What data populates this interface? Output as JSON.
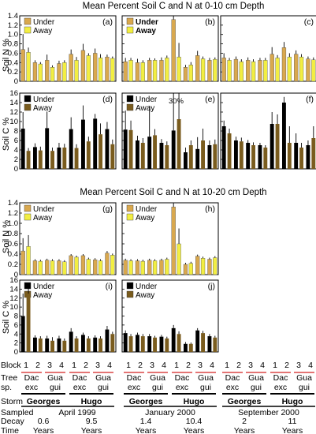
{
  "titles": {
    "top": "Mean Percent Soil C and N at 0-10 cm Depth",
    "bottom": "Mean Percent Soil C and N at 10-20 cm Depth"
  },
  "colors": {
    "under_n": "#D9A84E",
    "away_n": "#F2EE42",
    "under_c": "#000000",
    "away_c": "#7A5C1E",
    "red_line": "#D42020",
    "bar_edge": "#555555"
  },
  "axis_labels": {
    "soil_n": "Soil N %",
    "soil_c": "Soil C %"
  },
  "legend": {
    "under": "Under",
    "away": "Away"
  },
  "footer": {
    "block_label": "Block",
    "tree_label_1": "Tree",
    "tree_label_2": "sp.",
    "storm_label": "Storm",
    "sampled_label": "Sampled",
    "decay_label_1": "Decay",
    "decay_label_2": "Time",
    "blocks": [
      "1",
      "2",
      "3",
      "4"
    ],
    "species": [
      [
        "Dac",
        "exc"
      ],
      [
        "Gua",
        "gui"
      ]
    ],
    "storms": [
      "Georges",
      "Hugo"
    ],
    "sampled": [
      "April 1999",
      "January 2000",
      "September 2000"
    ],
    "decay": [
      [
        "0.6",
        "Years"
      ],
      [
        "9.5",
        "Years"
      ],
      [
        "1.4",
        "Years"
      ],
      [
        "10.4",
        "Years"
      ],
      [
        "2",
        "Years"
      ],
      [
        "11",
        "Years"
      ]
    ]
  },
  "chart_data": [
    {
      "panel": "(a)",
      "type": "bar",
      "depth": "0-10 cm",
      "ylabel": "Soil N %",
      "ylim": [
        0,
        1.4
      ],
      "yticks": [
        0,
        0.2,
        0.4,
        0.6,
        0.8,
        1.0,
        1.2,
        1.4
      ],
      "legend": true,
      "legend_labels": [
        "Under",
        "Away"
      ],
      "categories": [
        "Georges Dac exc 1",
        "Georges Dac exc 2",
        "Georges Gua gui 3",
        "Georges Gua gui 4",
        "Hugo Dac exc 1",
        "Hugo Dac exc 2",
        "Hugo Gua gui 3",
        "Hugo Gua gui 4"
      ],
      "series": [
        {
          "name": "Under",
          "values": [
            0.68,
            0.4,
            0.45,
            0.38,
            0.58,
            0.66,
            0.6,
            0.52
          ],
          "errors": [
            0.33,
            0.05,
            0.12,
            0.06,
            0.1,
            0.14,
            0.1,
            0.05
          ]
        },
        {
          "name": "Away",
          "values": [
            0.62,
            0.37,
            0.3,
            0.4,
            0.45,
            0.55,
            0.5,
            0.49
          ],
          "errors": [
            0.1,
            0.04,
            0.04,
            0.05,
            0.07,
            0.05,
            0.08,
            0.04
          ]
        }
      ]
    },
    {
      "panel": "(b)",
      "type": "bar",
      "depth": "0-10 cm",
      "ylabel": "Soil N %",
      "ylim": [
        0,
        1.4
      ],
      "legend": true,
      "legend_labels": [
        "Under",
        "Away"
      ],
      "categories": [
        "Georges Dac exc 1",
        "Georges Dac exc 2",
        "Georges Gua gui 3",
        "Georges Gua gui 4",
        "Hugo Dac exc 1",
        "Hugo Dac exc 2",
        "Hugo Gua gui 3",
        "Hugo Gua gui 4"
      ],
      "series": [
        {
          "name": "Under",
          "values": [
            0.42,
            0.4,
            0.45,
            0.45,
            1.32,
            0.3,
            0.55,
            0.45
          ],
          "errors": [
            0.08,
            0.08,
            0.05,
            0.06,
            0.1,
            0.05,
            0.1,
            0.05
          ]
        },
        {
          "name": "Away",
          "values": [
            0.45,
            0.4,
            0.45,
            0.5,
            0.52,
            0.35,
            0.48,
            0.47
          ],
          "errors": [
            0.05,
            0.05,
            0.04,
            0.05,
            0.3,
            0.06,
            0.05,
            0.04
          ]
        }
      ]
    },
    {
      "panel": "(c)",
      "type": "bar",
      "depth": "0-10 cm",
      "ylabel": "Soil N %",
      "ylim": [
        0,
        1.4
      ],
      "categories": [
        "Georges Dac exc 1",
        "Georges Dac exc 2",
        "Georges Gua gui 3",
        "Georges Gua gui 4",
        "Hugo Dac exc 1",
        "Hugo Dac exc 2",
        "Hugo Gua gui 3",
        "Hugo Gua gui 4"
      ],
      "series": [
        {
          "name": "Under",
          "values": [
            0.5,
            0.47,
            0.45,
            0.45,
            0.58,
            0.72,
            0.58,
            0.48
          ],
          "errors": [
            0.1,
            0.06,
            0.06,
            0.05,
            0.15,
            0.12,
            0.08,
            0.05
          ]
        },
        {
          "name": "Away",
          "values": [
            0.45,
            0.42,
            0.42,
            0.45,
            0.5,
            0.52,
            0.52,
            0.46
          ],
          "errors": [
            0.05,
            0.05,
            0.05,
            0.05,
            0.06,
            0.08,
            0.06,
            0.05
          ]
        }
      ]
    },
    {
      "panel": "(d)",
      "type": "bar",
      "depth": "0-10 cm",
      "ylabel": "Soil C %",
      "ylim": [
        0,
        16
      ],
      "yticks": [
        0,
        2,
        4,
        6,
        8,
        10,
        12,
        14,
        16
      ],
      "legend": true,
      "legend_labels": [
        "Under",
        "Away"
      ],
      "categories": [
        "Georges Dac exc 1",
        "Georges Dac exc 2",
        "Georges Gua gui 3",
        "Georges Gua gui 4",
        "Hugo Dac exc 1",
        "Hugo Dac exc 2",
        "Hugo Gua gui 3",
        "Hugo Gua gui 4"
      ],
      "series": [
        {
          "name": "Under",
          "values": [
            8.5,
            4.6,
            8.6,
            4.5,
            8.4,
            10.4,
            10.6,
            8.4
          ],
          "errors": [
            3.5,
            0.8,
            3.5,
            1.0,
            2.5,
            3.0,
            1.0,
            1.5
          ]
        },
        {
          "name": "Away",
          "values": [
            3.8,
            3.9,
            3.8,
            4.5,
            4.4,
            5.8,
            7.3,
            5.2
          ],
          "errors": [
            0.6,
            0.8,
            0.7,
            0.8,
            0.8,
            1.0,
            2.3,
            1.0
          ]
        }
      ]
    },
    {
      "panel": "(e)",
      "type": "bar",
      "depth": "0-10 cm",
      "ylabel": "Soil C %",
      "ylim": [
        0,
        16
      ],
      "legend": true,
      "legend_labels": [
        "Under",
        "Away"
      ],
      "annotation": "30%",
      "categories": [
        "Georges Dac exc 1",
        "Georges Dac exc 2",
        "Georges Gua gui 3",
        "Georges Gua gui 4",
        "Hugo Dac exc 1",
        "Hugo Dac exc 2",
        "Hugo Gua gui 3",
        "Hugo Gua gui 4"
      ],
      "series": [
        {
          "name": "Under",
          "values": [
            8.3,
            6.0,
            6.8,
            5.5,
            8.1,
            3.5,
            4.2,
            5.0
          ],
          "errors": [
            4.0,
            1.0,
            6.5,
            0.8,
            7.9,
            1.0,
            2.5,
            1.0
          ]
        },
        {
          "name": "Away",
          "values": [
            8.2,
            5.5,
            7.1,
            5.0,
            10.5,
            5.0,
            6.0,
            5.2
          ],
          "errors": [
            2.0,
            1.0,
            1.3,
            0.8,
            6.0,
            1.0,
            2.5,
            1.0
          ]
        }
      ]
    },
    {
      "panel": "(f)",
      "type": "bar",
      "depth": "0-10 cm",
      "ylabel": "Soil C %",
      "ylim": [
        0,
        16
      ],
      "categories": [
        "Georges Dac exc 1",
        "Georges Dac exc 2",
        "Georges Gua gui 3",
        "Georges Gua gui 4",
        "Hugo Dac exc 1",
        "Hugo Dac exc 2",
        "Hugo Gua gui 3",
        "Hugo Gua gui 4"
      ],
      "series": [
        {
          "name": "Under",
          "values": [
            9.0,
            6.0,
            5.5,
            5.0,
            9.5,
            14.0,
            5.5,
            5.0
          ],
          "errors": [
            1.2,
            0.8,
            0.6,
            0.5,
            2.5,
            1.2,
            2.0,
            1.0
          ]
        },
        {
          "name": "Away",
          "values": [
            7.5,
            5.8,
            5.0,
            4.5,
            9.5,
            5.5,
            4.5,
            6.5
          ],
          "errors": [
            1.0,
            0.8,
            0.6,
            0.5,
            2.0,
            3.5,
            1.0,
            2.5
          ]
        }
      ]
    },
    {
      "panel": "(g)",
      "type": "bar",
      "depth": "10-20 cm",
      "ylabel": "Soil N %",
      "ylim": [
        0,
        1.4
      ],
      "yticks": [
        0,
        0.2,
        0.4,
        0.6,
        0.8,
        1.0,
        1.2,
        1.4
      ],
      "legend": true,
      "legend_labels": [
        "Under",
        "Away"
      ],
      "categories": [
        "Georges Dac exc 1",
        "Georges Dac exc 2",
        "Georges Gua gui 3",
        "Georges Gua gui 4",
        "Hugo Dac exc 1",
        "Hugo Dac exc 2",
        "Hugo Gua gui 3",
        "Hugo Gua gui 4"
      ],
      "series": [
        {
          "name": "Under",
          "values": [
            0.46,
            0.27,
            0.28,
            0.27,
            0.37,
            0.37,
            0.29,
            0.42
          ],
          "errors": [
            0.25,
            0.03,
            0.03,
            0.03,
            0.03,
            0.03,
            0.03,
            0.04
          ]
        },
        {
          "name": "Away",
          "values": [
            0.55,
            0.26,
            0.27,
            0.25,
            0.34,
            0.3,
            0.27,
            0.38
          ],
          "errors": [
            0.22,
            0.03,
            0.03,
            0.03,
            0.03,
            0.03,
            0.03,
            0.03
          ]
        }
      ]
    },
    {
      "panel": "(h)",
      "type": "bar",
      "depth": "10-20 cm",
      "ylabel": "Soil N %",
      "ylim": [
        0,
        1.4
      ],
      "legend": true,
      "legend_labels": [
        "Under",
        "Away"
      ],
      "categories": [
        "Georges Dac exc 1",
        "Georges Dac exc 2",
        "Georges Gua gui 3",
        "Georges Gua gui 4",
        "Hugo Dac exc 1",
        "Hugo Dac exc 2",
        "Hugo Gua gui 3",
        "Hugo Gua gui 4"
      ],
      "series": [
        {
          "name": "Under",
          "values": [
            0.28,
            0.27,
            0.28,
            0.28,
            1.32,
            0.2,
            0.36,
            0.3
          ],
          "errors": [
            0.03,
            0.03,
            0.03,
            0.03,
            0.08,
            0.03,
            0.03,
            0.03
          ]
        },
        {
          "name": "Away",
          "values": [
            0.27,
            0.26,
            0.27,
            0.3,
            0.6,
            0.22,
            0.32,
            0.33
          ],
          "errors": [
            0.03,
            0.03,
            0.03,
            0.03,
            0.3,
            0.03,
            0.03,
            0.03
          ]
        }
      ]
    },
    {
      "panel": "(i)",
      "type": "bar",
      "depth": "10-20 cm",
      "ylabel": "Soil C %",
      "ylim": [
        0,
        16
      ],
      "yticks": [
        0,
        2,
        4,
        6,
        8,
        10,
        12,
        14,
        16
      ],
      "legend": true,
      "legend_labels": [
        "Under",
        "Away"
      ],
      "categories": [
        "Georges Dac exc 1",
        "Georges Dac exc 2",
        "Georges Gua gui 3",
        "Georges Gua gui 4",
        "Hugo Dac exc 1",
        "Hugo Dac exc 2",
        "Hugo Gua gui 3",
        "Hugo Gua gui 4"
      ],
      "series": [
        {
          "name": "Under",
          "values": [
            8.0,
            3.2,
            3.0,
            3.0,
            4.5,
            3.8,
            3.2,
            5.0
          ],
          "errors": [
            5.0,
            0.5,
            0.6,
            0.6,
            0.8,
            0.5,
            0.5,
            0.8
          ]
        },
        {
          "name": "Away",
          "values": [
            13.0,
            3.0,
            2.5,
            2.5,
            3.0,
            3.0,
            3.0,
            4.0
          ],
          "errors": [
            1.5,
            0.5,
            0.8,
            0.5,
            0.5,
            0.5,
            0.5,
            0.5
          ]
        }
      ]
    },
    {
      "panel": "(j)",
      "type": "bar",
      "depth": "10-20 cm",
      "ylabel": "Soil C %",
      "ylim": [
        0,
        16
      ],
      "legend": true,
      "legend_labels": [
        "Under",
        "Away"
      ],
      "categories": [
        "Georges Dac exc 1",
        "Georges Dac exc 2",
        "Georges Gua gui 3",
        "Georges Gua gui 4",
        "Hugo Dac exc 1",
        "Hugo Dac exc 2",
        "Hugo Gua gui 3",
        "Hugo Gua gui 4"
      ],
      "series": [
        {
          "name": "Under",
          "values": [
            4.2,
            3.8,
            3.5,
            3.4,
            5.3,
            1.8,
            4.8,
            3.5
          ],
          "errors": [
            0.6,
            0.5,
            0.5,
            0.4,
            0.7,
            0.4,
            0.5,
            0.5
          ]
        },
        {
          "name": "Away",
          "values": [
            3.5,
            3.5,
            3.2,
            3.0,
            4.0,
            1.8,
            4.2,
            3.2
          ],
          "errors": [
            0.5,
            0.5,
            0.4,
            0.4,
            0.6,
            0.3,
            0.5,
            0.4
          ]
        }
      ]
    }
  ]
}
